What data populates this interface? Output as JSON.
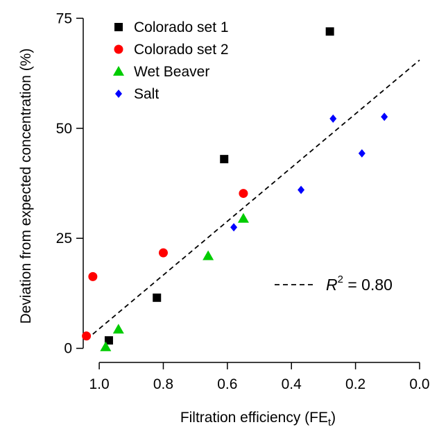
{
  "chart_data": {
    "type": "scatter",
    "xlabel": "Filtration efficiency (FE",
    "xlabel_sub": "t",
    "xlabel_close": ")",
    "ylabel": "Deviation from expected concentration (%)",
    "xlim": [
      1.05,
      0.0
    ],
    "ylim": [
      -1,
      76
    ],
    "x_reversed": true,
    "x_ticks": [
      1.0,
      0.8,
      0.6,
      0.4,
      0.2,
      0.0
    ],
    "x_tick_labels": [
      "1.0",
      "0.8",
      "0.6",
      "0.4",
      "0.2",
      "0.0"
    ],
    "y_ticks": [
      0,
      25,
      50,
      75
    ],
    "y_tick_labels": [
      "0",
      "25",
      "50",
      "75"
    ],
    "grid": false,
    "legend_position": "top-left",
    "series": [
      {
        "name": "Colorado set 1",
        "marker": "square",
        "color": "#000000",
        "x": [
          0.97,
          0.82,
          0.61,
          0.28
        ],
        "y": [
          1.8,
          11.5,
          43.0,
          72.0
        ]
      },
      {
        "name": "Colorado set 2",
        "marker": "circle",
        "color": "#ff0000",
        "x": [
          1.04,
          1.02,
          0.8,
          0.55
        ],
        "y": [
          2.8,
          16.3,
          21.7,
          35.2
        ]
      },
      {
        "name": "Wet Beaver",
        "marker": "triangle",
        "color": "#00cc00",
        "x": [
          0.98,
          0.94,
          0.66,
          0.55
        ],
        "y": [
          0.3,
          4.3,
          21.0,
          29.5
        ]
      },
      {
        "name": "Salt",
        "marker": "diamond",
        "color": "#0000ff",
        "x": [
          0.58,
          0.37,
          0.27,
          0.18,
          0.11
        ],
        "y": [
          27.5,
          36.0,
          52.2,
          44.3,
          52.6
        ]
      }
    ],
    "fit_line": {
      "style": "dashed",
      "color": "#000000",
      "x": [
        1.04,
        0.0
      ],
      "y": [
        2.0,
        65.5
      ]
    },
    "annotation": {
      "label_main": "R",
      "label_sup": "2",
      "label_rest": " = 0.80"
    }
  }
}
